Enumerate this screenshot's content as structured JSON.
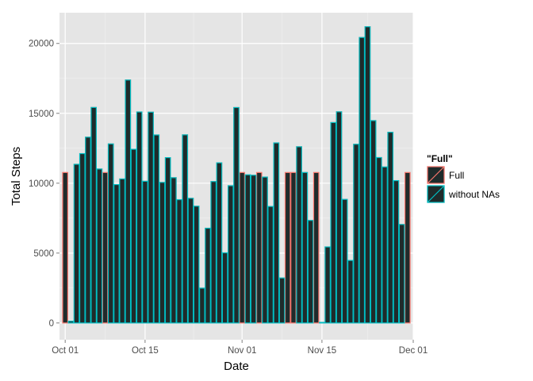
{
  "chart_data": {
    "type": "bar",
    "xlabel": "Date",
    "ylabel": "Total Steps",
    "ylim": [
      -1200,
      22200
    ],
    "xlim": [
      "2012-09-30",
      "2012-12-01"
    ],
    "x_ticks": [
      {
        "date": "2012-10-01",
        "label": "Oct 01"
      },
      {
        "date": "2012-10-15",
        "label": "Oct 15"
      },
      {
        "date": "2012-11-01",
        "label": "Nov 01"
      },
      {
        "date": "2012-11-15",
        "label": "Nov 15"
      },
      {
        "date": "2012-12-01",
        "label": "Dec 01"
      }
    ],
    "y_ticks": [
      0,
      5000,
      10000,
      15000,
      20000
    ],
    "y_tick_labels": [
      "0",
      "5000",
      "10000",
      "15000",
      "20000"
    ],
    "grid": true,
    "legend": {
      "title": "\"Full\"",
      "position": "right",
      "entries": [
        "Full",
        "without NAs"
      ]
    },
    "series": [
      {
        "name": "Full",
        "outline_color": "#F8766D",
        "fill_color": "#1f2b2b",
        "x": [
          "2012-10-01",
          "2012-10-02",
          "2012-10-03",
          "2012-10-04",
          "2012-10-05",
          "2012-10-06",
          "2012-10-07",
          "2012-10-08",
          "2012-10-09",
          "2012-10-10",
          "2012-10-11",
          "2012-10-12",
          "2012-10-13",
          "2012-10-14",
          "2012-10-15",
          "2012-10-16",
          "2012-10-17",
          "2012-10-18",
          "2012-10-19",
          "2012-10-20",
          "2012-10-21",
          "2012-10-22",
          "2012-10-23",
          "2012-10-24",
          "2012-10-25",
          "2012-10-26",
          "2012-10-27",
          "2012-10-28",
          "2012-10-29",
          "2012-10-30",
          "2012-10-31",
          "2012-11-01",
          "2012-11-02",
          "2012-11-03",
          "2012-11-04",
          "2012-11-05",
          "2012-11-06",
          "2012-11-07",
          "2012-11-08",
          "2012-11-09",
          "2012-11-10",
          "2012-11-11",
          "2012-11-12",
          "2012-11-13",
          "2012-11-14",
          "2012-11-15",
          "2012-11-16",
          "2012-11-17",
          "2012-11-18",
          "2012-11-19",
          "2012-11-20",
          "2012-11-21",
          "2012-11-22",
          "2012-11-23",
          "2012-11-24",
          "2012-11-25",
          "2012-11-26",
          "2012-11-27",
          "2012-11-28",
          "2012-11-29",
          "2012-11-30"
        ],
        "values": [
          10766,
          126,
          11352,
          12116,
          13294,
          15420,
          11015,
          10766,
          12811,
          9900,
          10304,
          17382,
          12426,
          15098,
          10139,
          15084,
          13452,
          10056,
          11829,
          10395,
          8821,
          13460,
          8918,
          8355,
          2492,
          6778,
          10119,
          11458,
          5018,
          9819,
          15414,
          10766,
          10600,
          10571,
          10766,
          10439,
          8334,
          12883,
          3219,
          10766,
          10766,
          12608,
          10765,
          7336,
          10766,
          41,
          5441,
          14339,
          15110,
          8841,
          4472,
          12787,
          20427,
          21194,
          14478,
          11834,
          11162,
          13646,
          10183,
          7047,
          10766
        ]
      },
      {
        "name": "without NAs",
        "outline_color": "#00BFC4",
        "fill_color": "#1f2b2b",
        "x": [
          "2012-10-02",
          "2012-10-03",
          "2012-10-04",
          "2012-10-05",
          "2012-10-06",
          "2012-10-07",
          "2012-10-09",
          "2012-10-10",
          "2012-10-11",
          "2012-10-12",
          "2012-10-13",
          "2012-10-14",
          "2012-10-15",
          "2012-10-16",
          "2012-10-17",
          "2012-10-18",
          "2012-10-19",
          "2012-10-20",
          "2012-10-21",
          "2012-10-22",
          "2012-10-23",
          "2012-10-24",
          "2012-10-25",
          "2012-10-26",
          "2012-10-27",
          "2012-10-28",
          "2012-10-29",
          "2012-10-30",
          "2012-10-31",
          "2012-11-02",
          "2012-11-03",
          "2012-11-05",
          "2012-11-06",
          "2012-11-07",
          "2012-11-08",
          "2012-11-11",
          "2012-11-12",
          "2012-11-13",
          "2012-11-15",
          "2012-11-16",
          "2012-11-17",
          "2012-11-18",
          "2012-11-19",
          "2012-11-20",
          "2012-11-21",
          "2012-11-22",
          "2012-11-23",
          "2012-11-24",
          "2012-11-25",
          "2012-11-26",
          "2012-11-27",
          "2012-11-28",
          "2012-11-29"
        ],
        "values": [
          126,
          11352,
          12116,
          13294,
          15420,
          11015,
          12811,
          9900,
          10304,
          17382,
          12426,
          15098,
          10139,
          15084,
          13452,
          10056,
          11829,
          10395,
          8821,
          13460,
          8918,
          8355,
          2492,
          6778,
          10119,
          11458,
          5018,
          9819,
          15414,
          10600,
          10571,
          10439,
          8334,
          12883,
          3219,
          12608,
          10765,
          7336,
          41,
          5441,
          14339,
          15110,
          8841,
          4472,
          12787,
          20427,
          21194,
          14478,
          11834,
          11162,
          13646,
          10183,
          7047
        ]
      }
    ]
  }
}
